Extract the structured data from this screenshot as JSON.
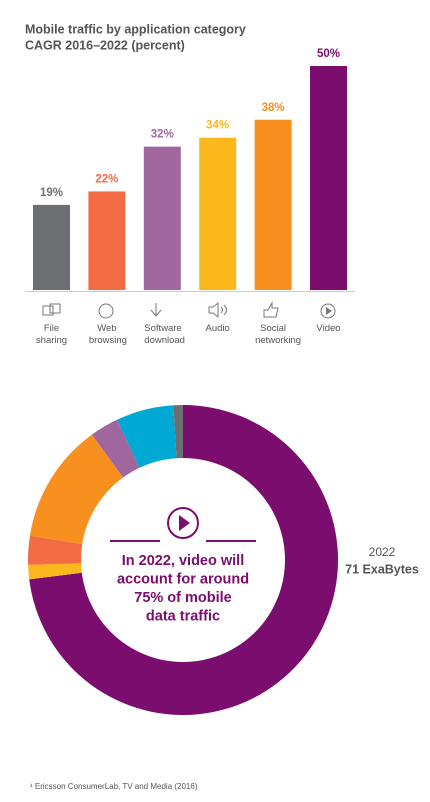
{
  "chart_data": [
    {
      "type": "bar",
      "title": "Mobile traffic by application category",
      "subtitle": "CAGR 2016–2022 (percent)",
      "categories": [
        "File sharing",
        "Web browsing",
        "Software download",
        "Audio",
        "Social networking",
        "Video"
      ],
      "values": [
        19,
        22,
        32,
        34,
        38,
        50
      ],
      "value_labels": [
        "19%",
        "22%",
        "32%",
        "34%",
        "38%",
        "50%"
      ],
      "colors": [
        "#6d6e71",
        "#f26b43",
        "#a0679e",
        "#fbb81c",
        "#f7901e",
        "#7b0d6e"
      ],
      "ylim": [
        0,
        50
      ]
    },
    {
      "type": "pie",
      "values": [
        73,
        1.5,
        3,
        12.5,
        3,
        6,
        1
      ],
      "colors": [
        "#7b0d6e",
        "#fbb81c",
        "#f26b43",
        "#f7901e",
        "#a0679e",
        "#00a9d4",
        "#6d6e71"
      ],
      "annotation_lines": [
        "In 2022, video will",
        "account for around",
        "75% of mobile",
        "data traffic"
      ],
      "label_year": "2022",
      "label_total": "71 ExaBytes"
    }
  ],
  "footnote": "¹ Ericsson ConsumerLab, TV and Media (2016)"
}
